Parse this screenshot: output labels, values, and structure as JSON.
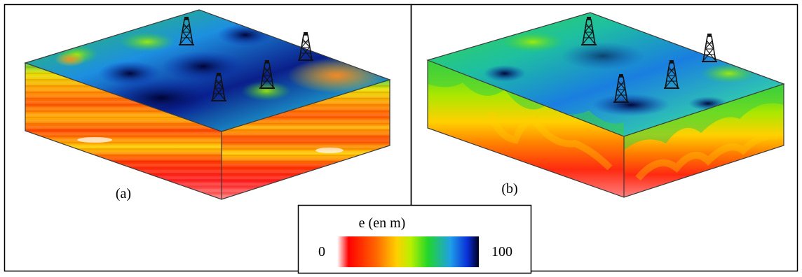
{
  "panels": [
    {
      "label": "(a)"
    },
    {
      "label": "(b)"
    }
  ],
  "legend": {
    "title": "e (en m)",
    "min_label": "0",
    "max_label": "100",
    "colorscale": [
      "#ffffff",
      "#ff0000",
      "#ff6a00",
      "#ffd000",
      "#b8f000",
      "#22d62a",
      "#1f9fe8",
      "#0a2ed8",
      "#000020"
    ]
  },
  "colors": {
    "frame": "#000000",
    "box_edge": "#3a3a3a"
  },
  "icons": [
    "oil-derrick-icon"
  ]
}
